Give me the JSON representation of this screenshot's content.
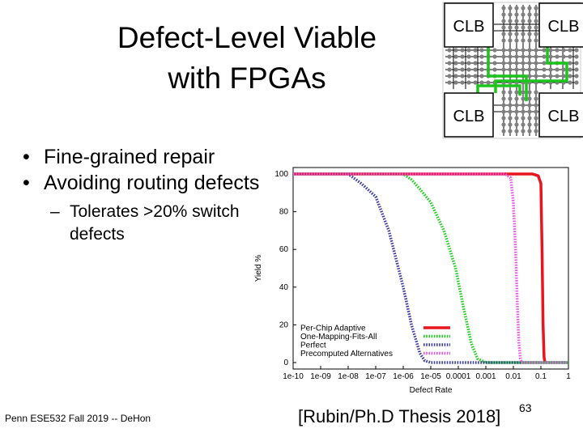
{
  "slide": {
    "title_line1": "Defect-Level Viable",
    "title_line2": "with FPGAs",
    "bullets": [
      "Fine-grained repair",
      "Avoiding routing defects"
    ],
    "sub_bullet": "Tolerates >20% switch defects",
    "footer": "Penn ESE532 Fall 2019 -- DeHon",
    "citation": "[Rubin/Ph.D Thesis 2018]",
    "page_number": "63"
  },
  "fpga_diagram": {
    "block_label": "CLB",
    "colors": {
      "routing": "#1ec41e",
      "wire": "#000000",
      "switch": "#808080"
    }
  },
  "chart_data": {
    "type": "line",
    "xlabel": "Defect Rate",
    "ylabel": "Yield %",
    "xscale": "log",
    "xlim": [
      1e-10,
      1
    ],
    "ylim": [
      0,
      100
    ],
    "x_tick_labels": [
      "1e-10",
      "1e-09",
      "1e-08",
      "1e-07",
      "1e-06",
      "1e-05",
      "0.0001",
      "0.001",
      "0.01",
      "0.1",
      "1"
    ],
    "y_tick_labels": [
      "0",
      "20",
      "40",
      "60",
      "80",
      "100"
    ],
    "y_ticks": [
      0,
      20,
      40,
      60,
      80,
      100
    ],
    "grid": false,
    "legend_position": "bottom-left",
    "series": [
      {
        "name": "Per-Chip Adaptive",
        "color": "#e8141e",
        "style": "solid",
        "points": [
          [
            1e-10,
            100
          ],
          [
            0.05,
            100
          ],
          [
            0.08,
            99
          ],
          [
            0.1,
            95
          ],
          [
            0.11,
            60
          ],
          [
            0.12,
            20
          ],
          [
            0.13,
            3
          ],
          [
            0.14,
            0
          ]
        ]
      },
      {
        "name": "One-Mapping-Fits-All",
        "color": "#22cc22",
        "style": "dotted",
        "points": [
          [
            1e-10,
            100
          ],
          [
            1e-06,
            100
          ],
          [
            2e-06,
            97
          ],
          [
            4e-06,
            92
          ],
          [
            1e-05,
            85
          ],
          [
            3e-05,
            70
          ],
          [
            8e-05,
            50
          ],
          [
            0.00015,
            30
          ],
          [
            0.0003,
            10
          ],
          [
            0.0005,
            2
          ],
          [
            0.001,
            0
          ],
          [
            1,
            0
          ]
        ]
      },
      {
        "name": "Perfect",
        "color": "#3a3aa0",
        "style": "dotted",
        "points": [
          [
            1e-10,
            100
          ],
          [
            1e-08,
            100
          ],
          [
            3e-08,
            95
          ],
          [
            1e-07,
            88
          ],
          [
            3e-07,
            70
          ],
          [
            1e-06,
            40
          ],
          [
            2e-06,
            20
          ],
          [
            4e-06,
            5
          ],
          [
            6e-06,
            1
          ],
          [
            1e-05,
            0
          ],
          [
            1,
            0
          ]
        ]
      },
      {
        "name": "Precomputed Alternatives",
        "color": "#e855e8",
        "style": "dotted",
        "points": [
          [
            1e-10,
            100
          ],
          [
            0.005,
            100
          ],
          [
            0.008,
            98
          ],
          [
            0.01,
            85
          ],
          [
            0.012,
            60
          ],
          [
            0.014,
            30
          ],
          [
            0.016,
            10
          ],
          [
            0.018,
            2
          ],
          [
            0.02,
            0
          ],
          [
            1,
            0
          ]
        ]
      }
    ]
  }
}
